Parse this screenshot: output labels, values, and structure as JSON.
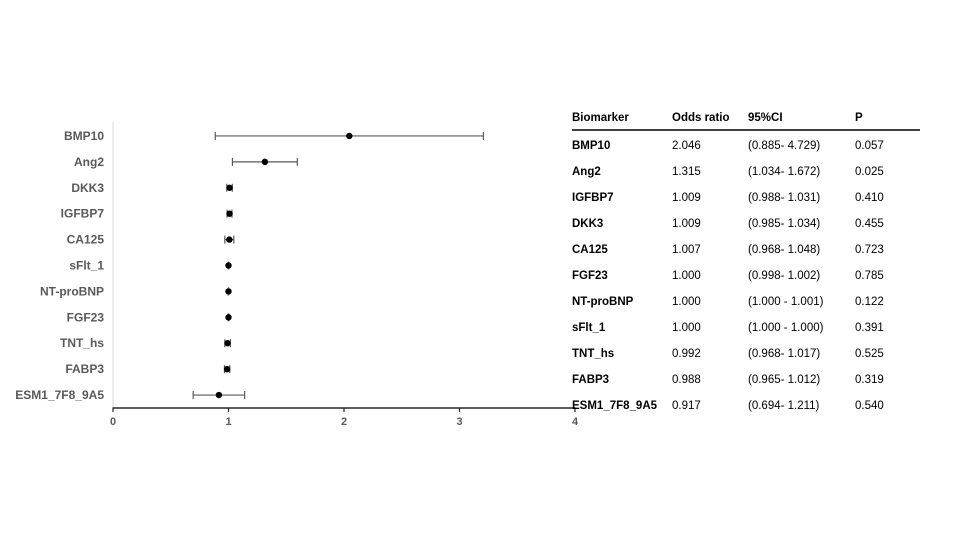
{
  "colors": {
    "background": "#ffffff",
    "axis_line": "#262626",
    "y_axis_line": "#d9d9d9",
    "error_bar": "#595959",
    "point_dot": "#000000",
    "chart_label": "#595959",
    "tick_label": "#595959",
    "table_text": "#000000",
    "header_rule": "#404040"
  },
  "chart_data": {
    "type": "scatter",
    "subtype": "forest-plot",
    "orientation": "horizontal",
    "title": "",
    "xlabel": "",
    "ylabel": "",
    "grid": false,
    "xlim": [
      0,
      4
    ],
    "xticks": [
      "0",
      "1",
      "2",
      "3",
      "4"
    ],
    "categories": [
      "BMP10",
      "Ang2",
      "DKK3",
      "IGFBP7",
      "CA125",
      "sFlt_1",
      "NT-proBNP",
      "FGF23",
      "TNT_hs",
      "FABP3",
      "ESM1_7F8_9A5"
    ],
    "series": [
      {
        "name": "Odds ratio",
        "values": [
          2.046,
          1.315,
          1.009,
          1.009,
          1.007,
          1.0,
          1.0,
          1.0,
          0.992,
          0.988,
          0.917
        ],
        "ci_lower": [
          0.885,
          1.034,
          0.985,
          0.988,
          0.968,
          1.0,
          1.0,
          0.998,
          0.968,
          0.965,
          0.694
        ],
        "ci_upper_drawn": [
          3.207,
          1.596,
          1.033,
          1.03,
          1.046,
          1.0,
          1.0,
          1.002,
          1.016,
          1.011,
          1.14
        ]
      }
    ],
    "legend": [],
    "note": "Error bars are drawn symmetric about the point estimate (upper = 2*value - lower), so BMP10 upper whisker renders at ~3.2 although table CI upper is 4.729"
  },
  "table": {
    "headers": [
      "Biomarker",
      "Odds ratio",
      "95%CI",
      "P"
    ],
    "rows": [
      {
        "biomarker": "BMP10",
        "odds_ratio": "2.046",
        "ci": "(0.885- 4.729)",
        "p": "0.057"
      },
      {
        "biomarker": "Ang2",
        "odds_ratio": "1.315",
        "ci": "(1.034- 1.672)",
        "p": "0.025"
      },
      {
        "biomarker": "IGFBP7",
        "odds_ratio": "1.009",
        "ci": "(0.988- 1.031)",
        "p": "0.410"
      },
      {
        "biomarker": "DKK3",
        "odds_ratio": "1.009",
        "ci": "(0.985- 1.034)",
        "p": "0.455"
      },
      {
        "biomarker": "CA125",
        "odds_ratio": "1.007",
        "ci": "(0.968- 1.048)",
        "p": "0.723"
      },
      {
        "biomarker": "FGF23",
        "odds_ratio": "1.000",
        "ci": "(0.998- 1.002)",
        "p": "0.785"
      },
      {
        "biomarker": "NT-proBNP",
        "odds_ratio": "1.000",
        "ci": "(1.000 - 1.001)",
        "p": "0.122"
      },
      {
        "biomarker": "sFlt_1",
        "odds_ratio": "1.000",
        "ci": "(1.000 - 1.000)",
        "p": "0.391"
      },
      {
        "biomarker": "TNT_hs",
        "odds_ratio": "0.992",
        "ci": "(0.968- 1.017)",
        "p": "0.525"
      },
      {
        "biomarker": "FABP3",
        "odds_ratio": "0.988",
        "ci": "(0.965- 1.012)",
        "p": "0.319"
      },
      {
        "biomarker": "ESM1_7F8_9A5",
        "odds_ratio": "0.917",
        "ci": "(0.694- 1.211)",
        "p": "0.540"
      }
    ]
  }
}
